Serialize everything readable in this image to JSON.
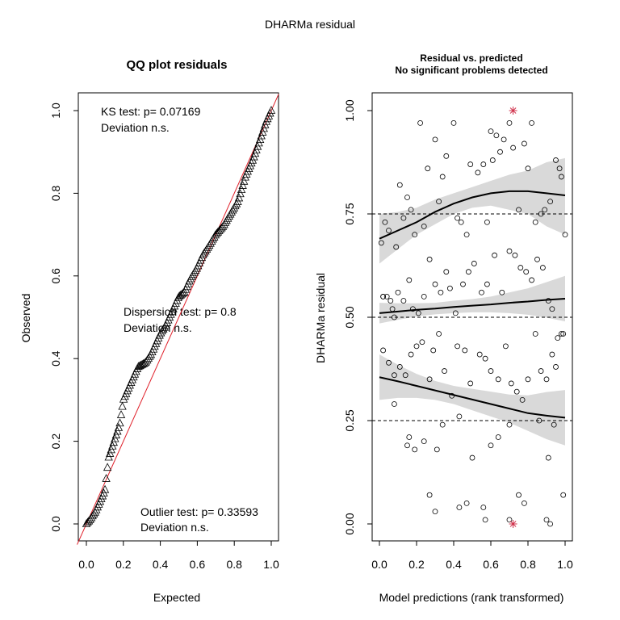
{
  "title": "DHARMa residual",
  "chart_data": [
    {
      "type": "scatter",
      "title": "QQ plot residuals",
      "xlabel": "Expected",
      "ylabel": "Observed",
      "xlim": [
        0,
        1
      ],
      "ylim": [
        0,
        1
      ],
      "xticks": [
        "0.0",
        "0.2",
        "0.4",
        "0.6",
        "0.8",
        "1.0"
      ],
      "yticks": [
        "0.0",
        "0.2",
        "0.4",
        "0.6",
        "0.8",
        "1.0"
      ],
      "reference_line": "y = x",
      "reference_color": "#e0202a",
      "annotations": {
        "ks_line1": "KS test: p= 0.07169",
        "ks_line2": "Deviation  n.s.",
        "disp_line1": "Dispersion test: p= 0.8",
        "disp_line2": "Deviation  n.s.",
        "out_line1": "Outlier test: p= 0.33593",
        "out_line2": "Deviation  n.s."
      },
      "curve": {
        "x": [
          0.0,
          0.02,
          0.05,
          0.08,
          0.1,
          0.12,
          0.15,
          0.18,
          0.2,
          0.23,
          0.26,
          0.28,
          0.32,
          0.35,
          0.38,
          0.4,
          0.43,
          0.46,
          0.5,
          0.53,
          0.56,
          0.6,
          0.63,
          0.66,
          0.7,
          0.74,
          0.78,
          0.82,
          0.86,
          0.9,
          0.94,
          0.97,
          1.0
        ],
        "y": [
          0.0,
          0.01,
          0.03,
          0.06,
          0.08,
          0.16,
          0.2,
          0.24,
          0.3,
          0.33,
          0.36,
          0.38,
          0.39,
          0.41,
          0.44,
          0.46,
          0.48,
          0.51,
          0.55,
          0.56,
          0.59,
          0.62,
          0.65,
          0.67,
          0.7,
          0.72,
          0.75,
          0.78,
          0.84,
          0.88,
          0.93,
          0.97,
          1.0
        ]
      }
    },
    {
      "type": "scatter",
      "title": "Residual vs. predicted",
      "subtitle": "No significant problems detected",
      "xlabel": "Model predictions (rank transformed)",
      "ylabel": "DHARMa residual",
      "xlim": [
        0,
        1
      ],
      "ylim": [
        0,
        1
      ],
      "xticks": [
        "0.0",
        "0.2",
        "0.4",
        "0.6",
        "0.8",
        "1.0"
      ],
      "yticks": [
        "0.00",
        "0.25",
        "0.50",
        "0.75",
        "1.00"
      ],
      "dashed_lines": [
        0.25,
        0.5,
        0.75
      ],
      "outlier_color": "#d0304a",
      "points": [
        [
          0.01,
          0.68
        ],
        [
          0.02,
          0.55
        ],
        [
          0.03,
          0.73
        ],
        [
          0.05,
          0.71
        ],
        [
          0.07,
          0.52
        ],
        [
          0.09,
          0.67
        ],
        [
          0.11,
          0.82
        ],
        [
          0.13,
          0.74
        ],
        [
          0.15,
          0.79
        ],
        [
          0.17,
          0.76
        ],
        [
          0.19,
          0.7
        ],
        [
          0.22,
          0.97
        ],
        [
          0.24,
          0.72
        ],
        [
          0.26,
          0.86
        ],
        [
          0.3,
          0.93
        ],
        [
          0.32,
          0.78
        ],
        [
          0.34,
          0.84
        ],
        [
          0.36,
          0.89
        ],
        [
          0.4,
          0.97
        ],
        [
          0.42,
          0.74
        ],
        [
          0.44,
          0.73
        ],
        [
          0.47,
          0.7
        ],
        [
          0.49,
          0.87
        ],
        [
          0.53,
          0.85
        ],
        [
          0.56,
          0.87
        ],
        [
          0.58,
          0.73
        ],
        [
          0.6,
          0.95
        ],
        [
          0.61,
          0.88
        ],
        [
          0.63,
          0.94
        ],
        [
          0.65,
          0.9
        ],
        [
          0.67,
          0.93
        ],
        [
          0.7,
          0.97
        ],
        [
          0.72,
          0.91
        ],
        [
          0.75,
          0.76
        ],
        [
          0.78,
          0.92
        ],
        [
          0.8,
          0.86
        ],
        [
          0.82,
          0.97
        ],
        [
          0.84,
          0.73
        ],
        [
          0.87,
          0.75
        ],
        [
          0.89,
          0.76
        ],
        [
          0.92,
          0.78
        ],
        [
          0.95,
          0.88
        ],
        [
          0.97,
          0.86
        ],
        [
          0.98,
          0.84
        ],
        [
          1.0,
          0.7
        ],
        [
          0.02,
          0.55
        ],
        [
          0.04,
          0.55
        ],
        [
          0.06,
          0.54
        ],
        [
          0.08,
          0.5
        ],
        [
          0.1,
          0.56
        ],
        [
          0.13,
          0.54
        ],
        [
          0.16,
          0.59
        ],
        [
          0.18,
          0.52
        ],
        [
          0.21,
          0.51
        ],
        [
          0.24,
          0.55
        ],
        [
          0.27,
          0.64
        ],
        [
          0.3,
          0.58
        ],
        [
          0.33,
          0.56
        ],
        [
          0.36,
          0.61
        ],
        [
          0.38,
          0.57
        ],
        [
          0.41,
          0.51
        ],
        [
          0.45,
          0.58
        ],
        [
          0.48,
          0.61
        ],
        [
          0.51,
          0.63
        ],
        [
          0.55,
          0.56
        ],
        [
          0.58,
          0.58
        ],
        [
          0.62,
          0.65
        ],
        [
          0.66,
          0.56
        ],
        [
          0.7,
          0.66
        ],
        [
          0.73,
          0.65
        ],
        [
          0.76,
          0.62
        ],
        [
          0.79,
          0.61
        ],
        [
          0.82,
          0.59
        ],
        [
          0.85,
          0.64
        ],
        [
          0.88,
          0.62
        ],
        [
          0.91,
          0.54
        ],
        [
          0.93,
          0.52
        ],
        [
          0.96,
          0.45
        ],
        [
          0.98,
          0.46
        ],
        [
          0.02,
          0.42
        ],
        [
          0.05,
          0.39
        ],
        [
          0.08,
          0.36
        ],
        [
          0.11,
          0.38
        ],
        [
          0.14,
          0.36
        ],
        [
          0.17,
          0.41
        ],
        [
          0.2,
          0.43
        ],
        [
          0.23,
          0.44
        ],
        [
          0.27,
          0.35
        ],
        [
          0.29,
          0.42
        ],
        [
          0.32,
          0.46
        ],
        [
          0.35,
          0.37
        ],
        [
          0.39,
          0.31
        ],
        [
          0.42,
          0.43
        ],
        [
          0.46,
          0.42
        ],
        [
          0.49,
          0.34
        ],
        [
          0.54,
          0.41
        ],
        [
          0.57,
          0.4
        ],
        [
          0.6,
          0.37
        ],
        [
          0.64,
          0.35
        ],
        [
          0.68,
          0.43
        ],
        [
          0.71,
          0.34
        ],
        [
          0.74,
          0.32
        ],
        [
          0.77,
          0.3
        ],
        [
          0.8,
          0.35
        ],
        [
          0.84,
          0.46
        ],
        [
          0.87,
          0.37
        ],
        [
          0.9,
          0.35
        ],
        [
          0.93,
          0.41
        ],
        [
          0.95,
          0.38
        ],
        [
          0.99,
          0.46
        ],
        [
          0.08,
          0.29
        ],
        [
          0.15,
          0.19
        ],
        [
          0.16,
          0.21
        ],
        [
          0.19,
          0.18
        ],
        [
          0.24,
          0.2
        ],
        [
          0.31,
          0.18
        ],
        [
          0.34,
          0.24
        ],
        [
          0.43,
          0.26
        ],
        [
          0.5,
          0.16
        ],
        [
          0.6,
          0.19
        ],
        [
          0.64,
          0.21
        ],
        [
          0.7,
          0.24
        ],
        [
          0.86,
          0.25
        ],
        [
          0.94,
          0.24
        ],
        [
          0.91,
          0.16
        ],
        [
          0.27,
          0.07
        ],
        [
          0.3,
          0.03
        ],
        [
          0.43,
          0.04
        ],
        [
          0.47,
          0.05
        ],
        [
          0.56,
          0.04
        ],
        [
          0.57,
          0.01
        ],
        [
          0.7,
          0.01
        ],
        [
          0.75,
          0.07
        ],
        [
          0.78,
          0.05
        ],
        [
          0.9,
          0.01
        ],
        [
          0.92,
          0.0
        ],
        [
          0.99,
          0.07
        ]
      ],
      "outliers": [
        [
          0.72,
          1.0
        ],
        [
          0.72,
          0.0
        ]
      ],
      "fits": [
        {
          "x": [
            0.0,
            0.1,
            0.2,
            0.3,
            0.4,
            0.5,
            0.6,
            0.7,
            0.8,
            0.9,
            1.0
          ],
          "y": [
            0.69,
            0.71,
            0.73,
            0.755,
            0.775,
            0.79,
            0.8,
            0.805,
            0.805,
            0.8,
            0.795
          ],
          "lo": [
            0.63,
            0.665,
            0.7,
            0.725,
            0.75,
            0.765,
            0.77,
            0.76,
            0.75,
            0.72,
            0.7
          ],
          "hi": [
            0.75,
            0.755,
            0.765,
            0.785,
            0.8,
            0.815,
            0.83,
            0.845,
            0.855,
            0.875,
            0.885
          ]
        },
        {
          "x": [
            0.0,
            0.1,
            0.2,
            0.3,
            0.4,
            0.5,
            0.6,
            0.7,
            0.8,
            0.9,
            1.0
          ],
          "y": [
            0.51,
            0.514,
            0.518,
            0.521,
            0.525,
            0.528,
            0.531,
            0.535,
            0.538,
            0.542,
            0.545
          ],
          "lo": [
            0.485,
            0.494,
            0.502,
            0.507,
            0.51,
            0.512,
            0.512,
            0.51,
            0.506,
            0.499,
            0.49
          ],
          "hi": [
            0.535,
            0.534,
            0.534,
            0.535,
            0.54,
            0.544,
            0.55,
            0.56,
            0.57,
            0.585,
            0.6
          ]
        },
        {
          "x": [
            0.0,
            0.1,
            0.2,
            0.3,
            0.4,
            0.5,
            0.6,
            0.7,
            0.8,
            0.9,
            1.0
          ],
          "y": [
            0.355,
            0.345,
            0.334,
            0.323,
            0.312,
            0.301,
            0.29,
            0.279,
            0.268,
            0.262,
            0.257
          ],
          "lo": [
            0.3,
            0.305,
            0.305,
            0.3,
            0.29,
            0.275,
            0.26,
            0.245,
            0.225,
            0.205,
            0.19
          ],
          "hi": [
            0.41,
            0.385,
            0.363,
            0.346,
            0.334,
            0.327,
            0.32,
            0.313,
            0.311,
            0.319,
            0.324
          ]
        }
      ]
    }
  ]
}
